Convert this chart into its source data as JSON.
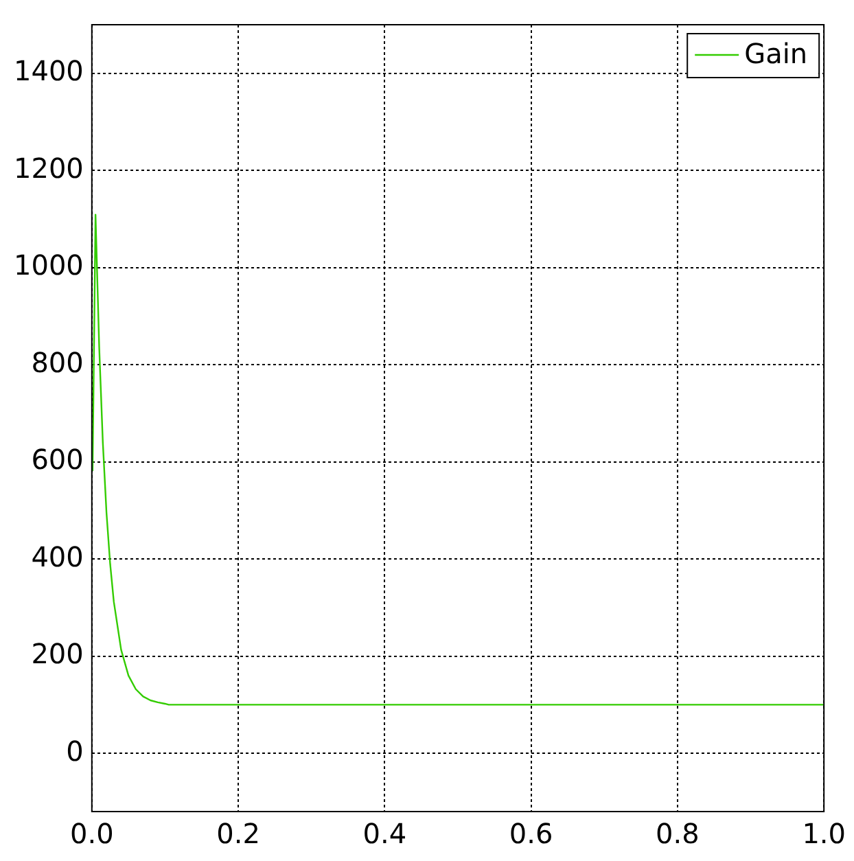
{
  "chart_data": {
    "type": "line",
    "x": [
      0.001,
      0.005,
      0.01,
      0.015,
      0.02,
      0.025,
      0.03,
      0.04,
      0.05,
      0.06,
      0.07,
      0.08,
      0.09,
      0.1,
      0.105,
      1.0
    ],
    "series": [
      {
        "name": "Gain",
        "color": "#33cc00",
        "values": [
          581,
          1109,
          838,
          640,
          495,
          390,
          312,
          213,
          160,
          132,
          117,
          109,
          105,
          102,
          100,
          100
        ]
      }
    ],
    "xlim": [
      0,
      1
    ],
    "xticks": [
      {
        "value": 0,
        "label": "0.0"
      },
      0.2,
      0.4,
      0.6,
      0.8,
      {
        "value": 1,
        "label": "1.0"
      }
    ],
    "ylim": [
      -120,
      1500
    ],
    "yticks": [
      0,
      200,
      400,
      600,
      800,
      1000,
      1200,
      1400
    ],
    "grid": true,
    "legend": "top right",
    "marker": "none",
    "line_style": "solid"
  }
}
